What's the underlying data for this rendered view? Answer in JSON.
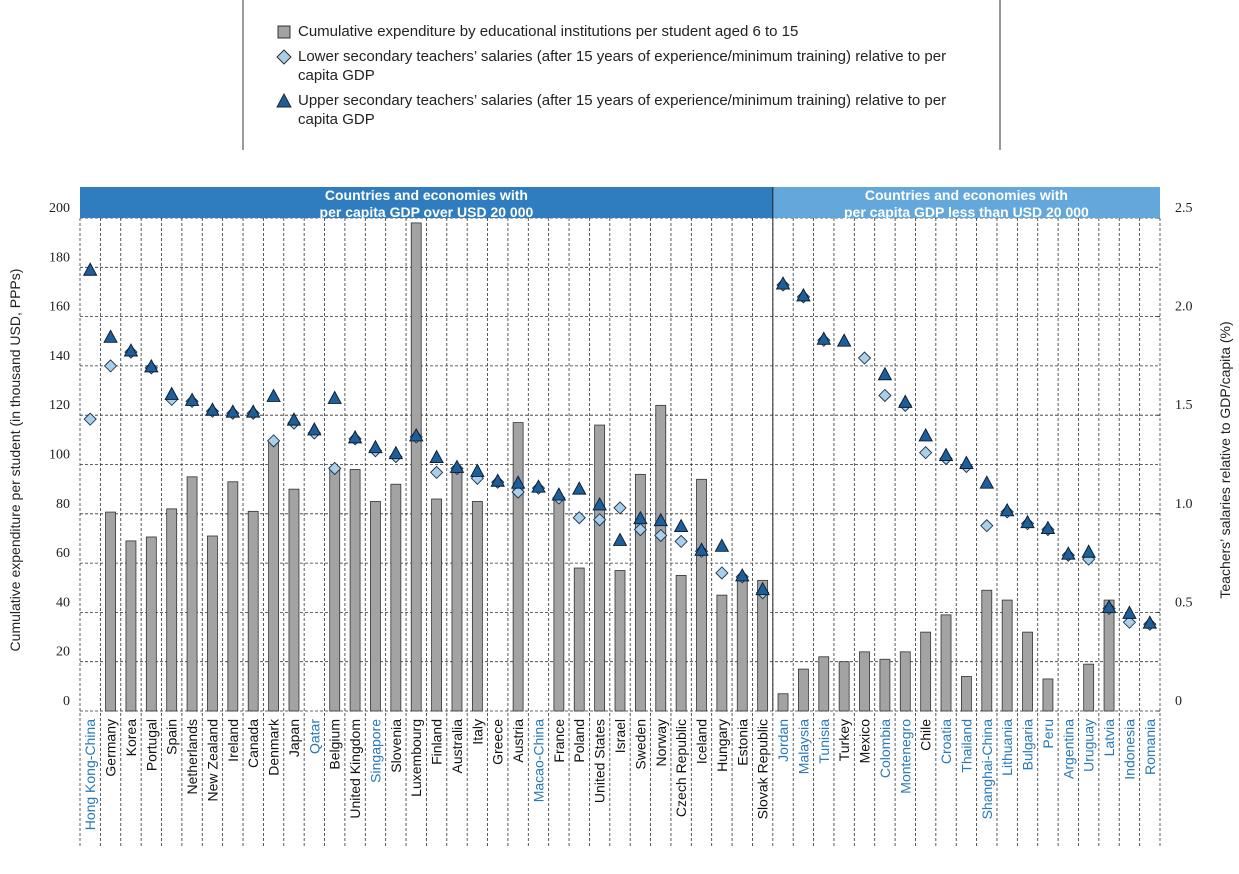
{
  "chart_data": {
    "type": "bar-marker",
    "y_label": "Cumulative expenditure per student (in thousand USD, PPPs)",
    "y2_label": "Teachers’ salaries relative to GDP/capita (%)",
    "ylim": [
      0,
      200
    ],
    "yticks": [
      0,
      20,
      40,
      60,
      80,
      100,
      120,
      140,
      160,
      180,
      200
    ],
    "y2lim": [
      0,
      2.5
    ],
    "y2ticks": [
      0,
      0.5,
      {
        "value": 1,
        "label": "1.0"
      },
      1.5,
      {
        "value": 2,
        "label": "2.0"
      },
      2.5
    ],
    "grid": true,
    "groups": [
      {
        "title": [
          "Countries and economies with",
          "per capita GDP over USD 20 000"
        ],
        "color": "#2f7dbf",
        "categories": [
          "Hong Kong-China",
          "Germany",
          "Korea",
          "Portugal",
          "Spain",
          "Netherlands",
          "New Zealand",
          "Ireland",
          "Canada",
          "Denmark",
          "Japan",
          "Qatar",
          "Belgium",
          "United Kingdom",
          "Singapore",
          "Slovenia",
          "Luxembourg",
          "Finland",
          "Australia",
          "Italy",
          "Greece",
          "Austria",
          "Macao-China",
          "France",
          "Poland",
          "United States",
          "Israel",
          "Sweden",
          "Norway",
          "Czech Republic",
          "Iceland",
          "Hungary",
          "Estonia",
          "Slovak Republic"
        ],
        "category_colors": [
          "#2a78b8",
          "#111",
          "#111",
          "#111",
          "#111",
          "#111",
          "#111",
          "#111",
          "#111",
          "#111",
          "#111",
          "#2a78b8",
          "#111",
          "#111",
          "#2a78b8",
          "#111",
          "#111",
          "#111",
          "#111",
          "#111",
          "#111",
          "#111",
          "#2a78b8",
          "#111",
          "#111",
          "#111",
          "#111",
          "#111",
          "#111",
          "#111",
          "#111",
          "#111",
          "#111",
          "#111"
        ]
      },
      {
        "title": [
          "Countries and economies with",
          "per capita GDP less than USD 20 000"
        ],
        "color": "#64a8db",
        "categories": [
          "Jordan",
          "Malaysia",
          "Tunisia",
          "Turkey",
          "Mexico",
          "Colombia",
          "Montenegro",
          "Chile",
          "Croatia",
          "Thailand",
          "Shanghai-China",
          "Lithuania",
          "Bulgaria",
          "Peru",
          "Argentina",
          "Uruguay",
          "Latvia",
          "Indonesia",
          "Romania"
        ],
        "category_colors": [
          "#2a78b8",
          "#2a78b8",
          "#2a78b8",
          "#111",
          "#111",
          "#2a78b8",
          "#2a78b8",
          "#111",
          "#2a78b8",
          "#2a78b8",
          "#2a78b8",
          "#2a78b8",
          "#2a78b8",
          "#2a78b8",
          "#2a78b8",
          "#2a78b8",
          "#2a78b8",
          "#2a78b8",
          "#2a78b8"
        ]
      }
    ],
    "series": [
      {
        "name": "Cumulative expenditure by educational institutions per student aged 6 to 15",
        "marker": "bar",
        "color": "#a3a3a3",
        "values": [
          null,
          80.7,
          69,
          70.6,
          82,
          95,
          71,
          93,
          81,
          109,
          90,
          null,
          99,
          98,
          85,
          92,
          198,
          86,
          98,
          85,
          null,
          117,
          null,
          86,
          58,
          116,
          57,
          96,
          124,
          55,
          94,
          47,
          54,
          53,
          7,
          17,
          22,
          20,
          24,
          21,
          24,
          32,
          39,
          14,
          49,
          45,
          32,
          13,
          null,
          19,
          45,
          null,
          null
        ]
      },
      {
        "name": "Lower secondary teachers’ salaries (after 15 years of experience/minimum training) relative to per capita GDP",
        "marker": "diamond",
        "color": "#a9cfea",
        "axis": "y2",
        "values": [
          1.48,
          1.75,
          1.82,
          1.74,
          1.58,
          1.57,
          1.52,
          1.51,
          1.51,
          1.37,
          1.46,
          1.41,
          1.23,
          1.38,
          1.32,
          1.29,
          1.39,
          1.21,
          1.23,
          1.18,
          1.16,
          1.11,
          1.13,
          1.08,
          0.98,
          0.97,
          1.03,
          0.92,
          0.89,
          0.86,
          0.81,
          0.7,
          0.68,
          0.6,
          2.16,
          2.1,
          1.88,
          null,
          1.79,
          1.6,
          1.55,
          1.31,
          1.28,
          1.24,
          0.94,
          1.01,
          0.95,
          0.92,
          0.79,
          0.77,
          0.52,
          0.45,
          0.44
        ]
      },
      {
        "name": "Upper secondary teachers’ salaries (after 15 years of experience/minimum training) relative to per capita GDP",
        "marker": "triangle",
        "color": "#1d5f9b",
        "axis": "y2",
        "values": [
          2.23,
          1.89,
          1.82,
          1.74,
          1.6,
          1.57,
          1.52,
          1.51,
          1.51,
          1.59,
          1.47,
          1.42,
          1.58,
          1.38,
          1.33,
          1.3,
          1.39,
          1.28,
          1.23,
          1.21,
          1.16,
          1.15,
          1.13,
          1.09,
          1.12,
          1.04,
          0.86,
          0.97,
          0.96,
          0.93,
          0.81,
          0.83,
          0.68,
          0.61,
          2.16,
          2.1,
          1.88,
          1.87,
          null,
          1.7,
          1.56,
          1.39,
          1.29,
          1.25,
          1.15,
          1.01,
          0.95,
          0.92,
          0.79,
          0.8,
          0.52,
          0.49,
          0.44
        ]
      }
    ]
  }
}
